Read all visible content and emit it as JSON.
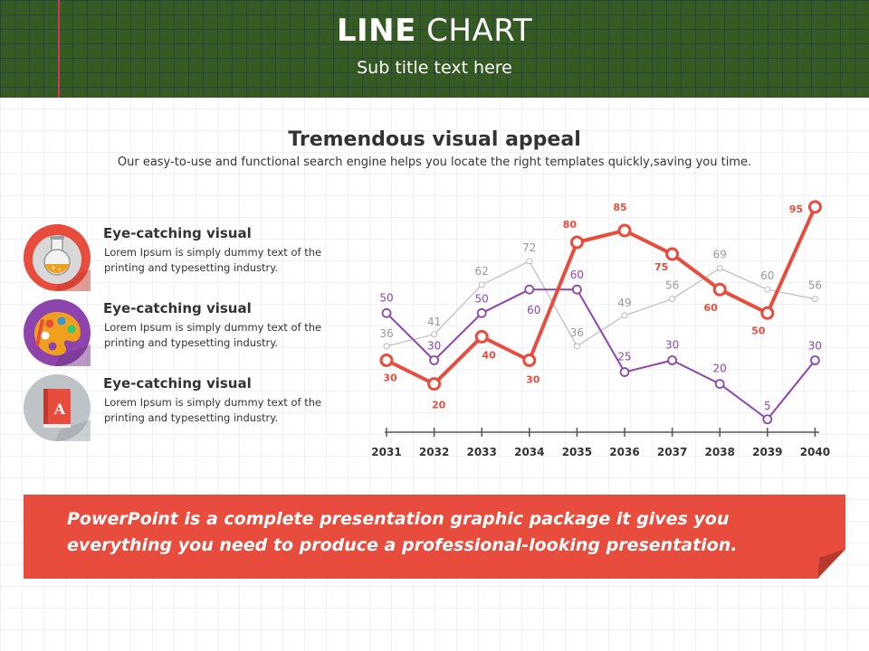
{
  "header": {
    "title_bold": "LINE",
    "title_rest": "CHART",
    "subtitle": "Sub title text here"
  },
  "intro": {
    "heading": "Tremendous visual appeal",
    "text": "Our easy-to-use and functional search engine helps you locate the right templates quickly,saving you time."
  },
  "features": [
    {
      "title": "Eye-catching visual",
      "text": "Lorem Ipsum is simply dummy text of the printing and typesetting industry.",
      "icon": "flask-icon",
      "color": "#e84c3d"
    },
    {
      "title": "Eye-catching visual",
      "text": "Lorem Ipsum is simply dummy text of the printing and typesetting industry.",
      "icon": "palette-icon",
      "color": "#8e44ad"
    },
    {
      "title": "Eye-catching visual",
      "text": "Lorem Ipsum is simply dummy text of the printing and typesetting industry.",
      "icon": "book-icon",
      "color": "#bdc3c7"
    }
  ],
  "chart_data": {
    "type": "line",
    "x": [
      "2031",
      "2032",
      "2033",
      "2034",
      "2035",
      "2036",
      "2037",
      "2038",
      "2039",
      "2040"
    ],
    "ylim": [
      0,
      100
    ],
    "grid": false,
    "series": [
      {
        "values": [
          36,
          41,
          62,
          72,
          36,
          49,
          56,
          69,
          60,
          56
        ],
        "color": "#bbbbbb",
        "label_color": "#999999"
      },
      {
        "values": [
          50,
          30,
          50,
          60,
          60,
          25,
          30,
          20,
          5,
          30
        ],
        "color": "#8e44ad",
        "label_color": "#8e44ad"
      },
      {
        "values": [
          30,
          20,
          40,
          30,
          80,
          85,
          75,
          60,
          50,
          95
        ],
        "color": "#e84c3d",
        "label_color": "#e84c3d"
      }
    ]
  },
  "banner": {
    "text": "PowerPoint is a complete presentation graphic package it gives you everything you need to produce a professional-looking presentation."
  }
}
